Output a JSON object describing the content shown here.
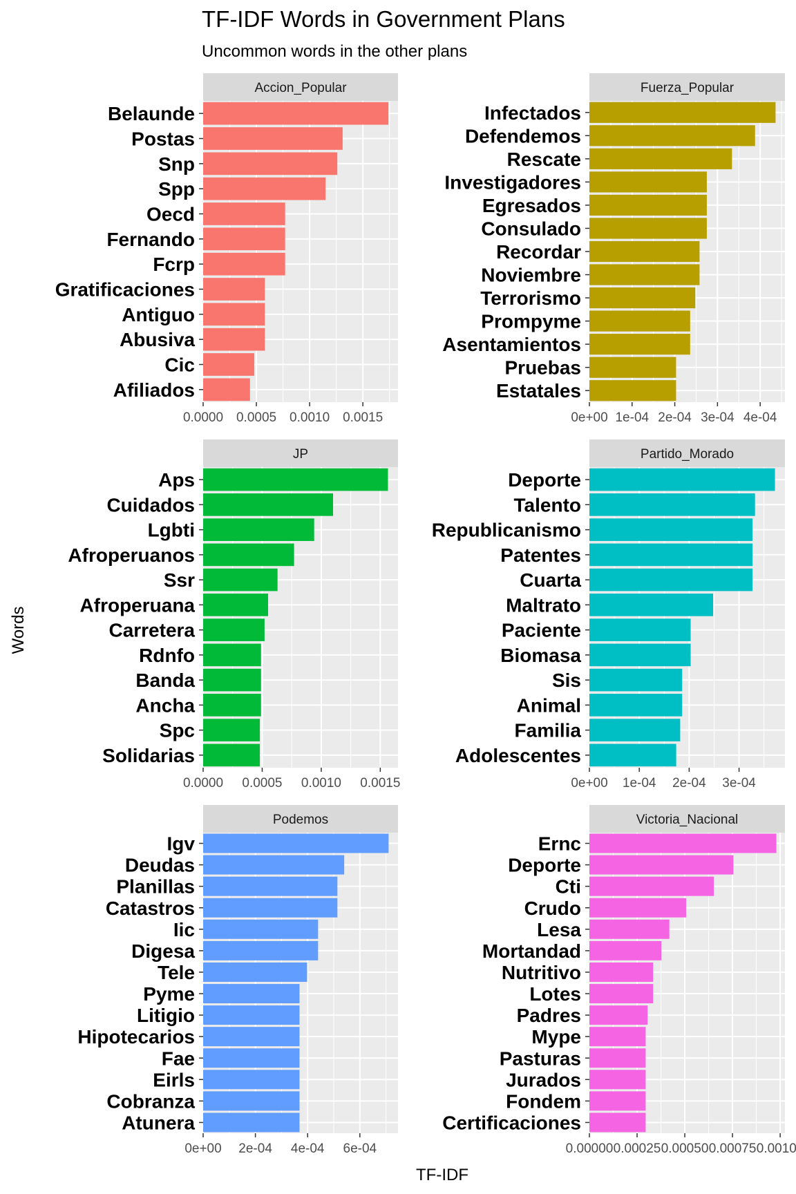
{
  "chart_data": {
    "type": "bar",
    "orientation": "horizontal",
    "title": "TF-IDF Words in Government Plans",
    "subtitle": "Uncommon words in the other plans",
    "xlabel": "TF-IDF",
    "ylabel": "Words",
    "grid": true,
    "facets": [
      {
        "name": "Accion_Popular",
        "color": "#F8766D",
        "xlim": [
          0,
          0.00183
        ],
        "ticks": [
          0,
          0.0005,
          0.001,
          0.0015
        ],
        "tick_labels": [
          "0.0000",
          "0.0005",
          "0.0010",
          "0.0015"
        ],
        "categories": [
          "Belaunde",
          "Postas",
          "Snp",
          "Spp",
          "Oecd",
          "Fernando",
          "Fcrp",
          "Gratificaciones",
          "Antiguo",
          "Abusiva",
          "Cic",
          "Afiliados"
        ],
        "values": [
          0.00174,
          0.00131,
          0.00126,
          0.00115,
          0.00077,
          0.00077,
          0.00077,
          0.00058,
          0.00058,
          0.00058,
          0.00048,
          0.00044
        ]
      },
      {
        "name": "Fuerza_Popular",
        "color": "#B79F00",
        "xlim": [
          0,
          0.000458
        ],
        "ticks": [
          0,
          0.0001,
          0.0002,
          0.0003,
          0.0004
        ],
        "tick_labels": [
          "0e+00",
          "1e-04",
          "2e-04",
          "3e-04",
          "4e-04"
        ],
        "categories": [
          "Infectados",
          "Defendemos",
          "Rescate",
          "Investigadores",
          "Egresados",
          "Consulado",
          "Recordar",
          "Noviembre",
          "Terrorismo",
          "Prompyme",
          "Asentamientos",
          "Pruebas",
          "Estatales"
        ],
        "values": [
          0.000436,
          0.000388,
          0.000334,
          0.000275,
          0.000275,
          0.000275,
          0.000258,
          0.000258,
          0.000248,
          0.000236,
          0.000236,
          0.000203,
          0.000203
        ]
      },
      {
        "name": "JP",
        "color": "#00BA38",
        "xlim": [
          0,
          0.00165
        ],
        "ticks": [
          0,
          0.0005,
          0.001,
          0.0015
        ],
        "tick_labels": [
          "0.0000",
          "0.0005",
          "0.0010",
          "0.0015"
        ],
        "categories": [
          "Aps",
          "Cuidados",
          "Lgbti",
          "Afroperuanos",
          "Ssr",
          "Afroperuana",
          "Carretera",
          "Rdnfo",
          "Banda",
          "Ancha",
          "Spc",
          "Solidarias"
        ],
        "values": [
          0.001565,
          0.0011,
          0.00094,
          0.00077,
          0.00063,
          0.00055,
          0.00052,
          0.00049,
          0.00049,
          0.00049,
          0.00048,
          0.00048
        ]
      },
      {
        "name": "Partido_Morado",
        "color": "#00BFC4",
        "xlim": [
          0,
          0.000392
        ],
        "ticks": [
          0,
          0.0001,
          0.0002,
          0.0003
        ],
        "tick_labels": [
          "0e+00",
          "1e-04",
          "2e-04",
          "3e-04"
        ],
        "categories": [
          "Deporte",
          "Talento",
          "Republicanismo",
          "Patentes",
          "Cuarta",
          "Maltrato",
          "Paciente",
          "Biomasa",
          "Sis",
          "Animal",
          "Familia",
          "Adolescentes"
        ],
        "values": [
          0.000372,
          0.000332,
          0.000327,
          0.000327,
          0.000327,
          0.000248,
          0.000203,
          0.000203,
          0.000186,
          0.000186,
          0.000182,
          0.000174
        ]
      },
      {
        "name": "Podemos",
        "color": "#619CFF",
        "xlim": [
          0,
          0.000746
        ],
        "ticks": [
          0,
          0.0002,
          0.0004,
          0.0006
        ],
        "tick_labels": [
          "0e+00",
          "2e-04",
          "4e-04",
          "6e-04"
        ],
        "categories": [
          "Igv",
          "Deudas",
          "Planillas",
          "Catastros",
          "Iic",
          "Digesa",
          "Tele",
          "Pyme",
          "Litigio",
          "Hipotecarios",
          "Fae",
          "Eirls",
          "Cobranza",
          "Atunera"
        ],
        "values": [
          0.00071,
          0.00054,
          0.000514,
          0.000514,
          0.00044,
          0.00044,
          0.000398,
          0.000369,
          0.000369,
          0.000369,
          0.000369,
          0.000369,
          0.000369,
          0.000369
        ]
      },
      {
        "name": "Victoria_Nacional",
        "color": "#F564E3",
        "xlim": [
          -0.0,
          0.001025
        ],
        "ticks": [
          0,
          0.00025,
          0.0005,
          0.00075,
          0.001
        ],
        "tick_labels": [
          "0.00000",
          "0.00025",
          "0.00050",
          "0.00075",
          "0.00100"
        ],
        "categories": [
          "Ernc",
          "Deporte",
          "Cti",
          "Crudo",
          "Lesa",
          "Mortandad",
          "Nutritivo",
          "Lotes",
          "Padres",
          "Mype",
          "Pasturas",
          "Jurados",
          "Fondem",
          "Certificaciones"
        ],
        "values": [
          0.00098,
          0.000755,
          0.000652,
          0.000507,
          0.000419,
          0.000377,
          0.000334,
          0.000334,
          0.000305,
          0.000295,
          0.000295,
          0.000295,
          0.000295,
          0.000295
        ]
      }
    ]
  }
}
